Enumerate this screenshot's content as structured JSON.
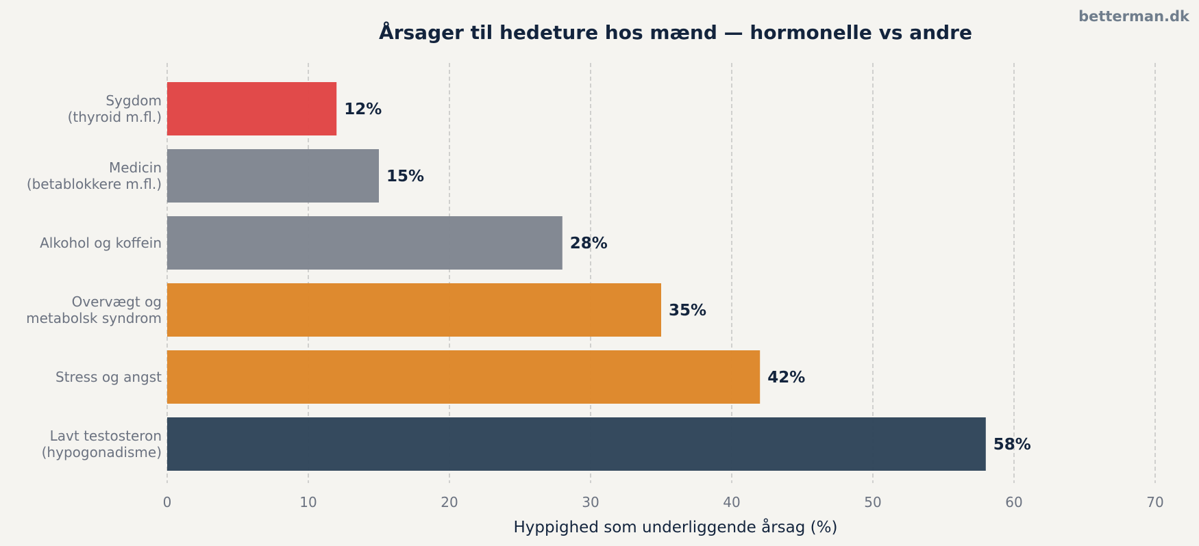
{
  "brand": "betterman.dk",
  "chart_data": {
    "type": "bar",
    "orientation": "horizontal",
    "title": "Årsager til hedeture hos mænd — hormonelle vs andre",
    "xlabel": "Hyppighed som underliggende årsag (%)",
    "ylabel": "",
    "xlim": [
      0,
      70
    ],
    "xticks": [
      0,
      10,
      20,
      30,
      40,
      50,
      60,
      70
    ],
    "grid": "vertical-dashed",
    "categories": [
      [
        "Sygdom",
        "(thyroid m.fl.)"
      ],
      [
        "Medicin",
        "(betablokkere m.fl.)"
      ],
      [
        "Alkohol og koffein"
      ],
      [
        "Overvægt og",
        "metabolsk syndrom"
      ],
      [
        "Stress og angst"
      ],
      [
        "Lavt testosteron",
        "(hypogonadisme)"
      ]
    ],
    "values": [
      12,
      15,
      28,
      35,
      42,
      58
    ],
    "value_labels": [
      "12%",
      "15%",
      "28%",
      "35%",
      "42%",
      "58%"
    ],
    "colors": [
      "#e04444",
      "#7f8590",
      "#7f8590",
      "#dd8628",
      "#dd8628",
      "#2e4459"
    ]
  },
  "style": {
    "background": "#f5f4f0",
    "grid_color": "#b8b8b8",
    "tick_color": "#6b7280",
    "label_color": "#13243d"
  }
}
